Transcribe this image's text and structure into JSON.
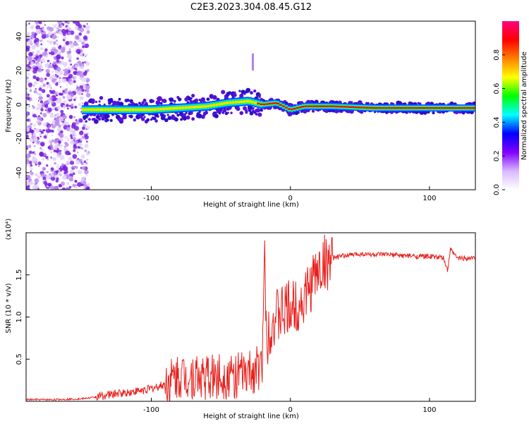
{
  "title": "C2E3.2023.304.08.45.G12",
  "chart_data": [
    {
      "type": "heatmap",
      "xlabel": "Height of straight line (km)",
      "ylabel": "Frequency (Hz)",
      "xlim": [
        -190,
        133
      ],
      "ylim": [
        -50,
        49
      ],
      "xticks": [
        -100,
        0,
        100
      ],
      "xtick_labels": [
        "-100",
        "0",
        "100"
      ],
      "yticks": [
        -40,
        -20,
        0,
        20,
        40
      ],
      "ytick_labels": [
        "-40",
        "-20",
        "0",
        "20",
        "40"
      ],
      "grid": false,
      "ridge_frequency_by_height": {
        "x": [
          -150,
          -140,
          -120,
          -100,
          -80,
          -60,
          -45,
          -30,
          -20,
          -10,
          0,
          10,
          30,
          60,
          100,
          133
        ],
        "y": [
          -3,
          -3,
          -3,
          -3,
          -2,
          -1,
          1,
          2,
          0,
          1,
          -3,
          -1,
          -1,
          -2,
          -2,
          -2
        ]
      },
      "spike": {
        "x": -27,
        "y": [
          20,
          30
        ]
      },
      "colorbar": {
        "label": "Normalized spectral amplitude",
        "range": [
          0,
          1
        ],
        "ticks": [
          0.0,
          0.2,
          0.4,
          0.6,
          0.8
        ],
        "tick_labels": [
          "0.0",
          "0.2",
          "0.4",
          "0.6",
          "0.8"
        ],
        "colors": [
          "#ffffff",
          "#d9b8ff",
          "#8000ff",
          "#0000ff",
          "#00ffff",
          "#00ff00",
          "#ffff00",
          "#ff8000",
          "#ff0000",
          "#ff0080"
        ]
      }
    },
    {
      "type": "line",
      "xlabel": "Height of straight line (km)",
      "ylabel": "SNR (10 * v/v)",
      "ylabel_multiplier": "(x10⁴)",
      "xlim": [
        -190,
        133
      ],
      "ylim": [
        0,
        2.0
      ],
      "xticks": [
        -100,
        0,
        100
      ],
      "xtick_labels": [
        "-100",
        "0",
        "100"
      ],
      "yticks": [
        0.5,
        1.0,
        1.5
      ],
      "ytick_labels": [
        "0.5",
        "1.0",
        "1.5"
      ],
      "grid": false,
      "line_color": "#e8201c",
      "x": [
        -190,
        -170,
        -150,
        -140,
        -130,
        -120,
        -110,
        -100,
        -90,
        -80,
        -70,
        -60,
        -50,
        -40,
        -30,
        -25,
        -20,
        -19,
        -17,
        -15,
        -10,
        -5,
        0,
        5,
        10,
        15,
        20,
        25,
        30,
        40,
        50,
        60,
        70,
        80,
        90,
        100,
        105,
        110,
        113,
        115,
        120,
        133
      ],
      "y": [
        0.02,
        0.02,
        0.03,
        0.05,
        0.08,
        0.1,
        0.12,
        0.15,
        0.2,
        0.3,
        0.3,
        0.28,
        0.3,
        0.3,
        0.32,
        0.38,
        0.4,
        1.95,
        0.7,
        0.9,
        1.0,
        1.05,
        1.1,
        1.15,
        1.2,
        1.4,
        1.55,
        1.65,
        1.7,
        1.73,
        1.75,
        1.74,
        1.74,
        1.73,
        1.72,
        1.72,
        1.71,
        1.7,
        1.55,
        1.8,
        1.7,
        1.7
      ]
    }
  ]
}
